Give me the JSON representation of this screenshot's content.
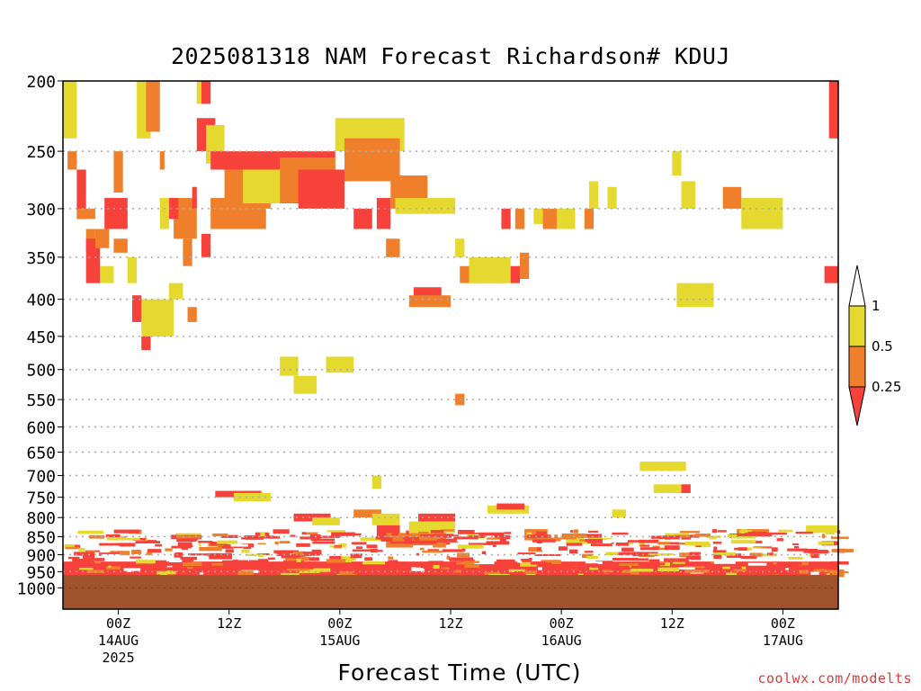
{
  "title": "2025081318 NAM Forecast Richardson# KDUJ",
  "xlabel": "Forecast Time (UTC)",
  "credit": "coolwx.com/modelts",
  "colors": {
    "yellow": "#e5d82e",
    "orange": "#ef7f2b",
    "red": "#f6423b",
    "ground": "#a0522d",
    "grid": "#aaaaaa"
  },
  "chart_data": {
    "type": "heatmap",
    "title": "2025081318 NAM Forecast Richardson# KDUJ",
    "xlabel": "Forecast Time (UTC)",
    "ylabel": "",
    "y_scale": "pressure (log), inverted",
    "ylim_hPa": [
      1000,
      200
    ],
    "xlim_forecast_hours": [
      0,
      84
    ],
    "init_time": "2025081318",
    "y_ticks": [
      200,
      250,
      300,
      350,
      400,
      450,
      500,
      550,
      600,
      650,
      700,
      750,
      800,
      850,
      900,
      950,
      1000
    ],
    "x_ticks": [
      {
        "label": "00Z",
        "sub": "14AUG",
        "sub2": "2025"
      },
      {
        "label": "12Z",
        "sub": "",
        "sub2": ""
      },
      {
        "label": "00Z",
        "sub": "15AUG",
        "sub2": ""
      },
      {
        "label": "12Z",
        "sub": "",
        "sub2": ""
      },
      {
        "label": "00Z",
        "sub": "16AUG",
        "sub2": ""
      },
      {
        "label": "12Z",
        "sub": "",
        "sub2": ""
      },
      {
        "label": "00Z",
        "sub": "17AUG",
        "sub2": ""
      }
    ],
    "grid": "dotted horizontal at each pressure tick",
    "legend": {
      "position": "right",
      "type": "colorbar",
      "labels": [
        "1",
        "0.5",
        "0.25"
      ],
      "bins": [
        {
          "range": "0.5 - 1",
          "color": "yellow"
        },
        {
          "range": "0.25 - 0.5",
          "color": "orange"
        },
        {
          "range": "< 0.25",
          "color": "red"
        }
      ]
    },
    "cells": [
      [
        "Y",
        0.0,
        1.5,
        200,
        240
      ],
      [
        "O",
        0.5,
        1.5,
        250,
        265
      ],
      [
        "R",
        1.5,
        2.5,
        265,
        310
      ],
      [
        "O",
        1.5,
        3.5,
        300,
        310
      ],
      [
        "O",
        2.5,
        3.5,
        320,
        345
      ],
      [
        "R",
        2.5,
        4.0,
        330,
        380
      ],
      [
        "O",
        3.5,
        5.0,
        320,
        340
      ],
      [
        "Y",
        4.0,
        5.5,
        360,
        380
      ],
      [
        "R",
        4.5,
        7.0,
        290,
        320
      ],
      [
        "O",
        5.5,
        6.5,
        250,
        285
      ],
      [
        "O",
        5.5,
        7.0,
        330,
        345
      ],
      [
        "Y",
        7.0,
        8.0,
        350,
        380
      ],
      [
        "R",
        7.5,
        8.5,
        395,
        430
      ],
      [
        "Y",
        8.0,
        9.5,
        200,
        240
      ],
      [
        "O",
        9.0,
        10.5,
        200,
        235
      ],
      [
        "R",
        8.5,
        9.5,
        450,
        470
      ],
      [
        "Y",
        8.5,
        12.0,
        400,
        450
      ],
      [
        "O",
        10.5,
        11.0,
        250,
        265
      ],
      [
        "Y",
        10.5,
        11.5,
        290,
        320
      ],
      [
        "Y",
        11.5,
        13.0,
        380,
        400
      ],
      [
        "O",
        12.0,
        14.5,
        290,
        330
      ],
      [
        "R",
        11.5,
        12.5,
        290,
        310
      ],
      [
        "O",
        13.0,
        14.0,
        330,
        360
      ],
      [
        "O",
        13.5,
        14.5,
        410,
        430
      ],
      [
        "R",
        14.0,
        14.5,
        280,
        300
      ],
      [
        "Y",
        14.5,
        15.5,
        200,
        215
      ],
      [
        "R",
        15.0,
        16.0,
        200,
        215
      ],
      [
        "R",
        14.5,
        16.5,
        225,
        250
      ],
      [
        "R",
        15.0,
        16.0,
        325,
        350
      ],
      [
        "Y",
        15.5,
        17.5,
        230,
        260
      ],
      [
        "R",
        16.0,
        29.5,
        250,
        265
      ],
      [
        "O",
        17.5,
        22.5,
        265,
        300
      ],
      [
        "O",
        16.0,
        22.0,
        290,
        320
      ],
      [
        "Y",
        19.5,
        23.5,
        265,
        295
      ],
      [
        "O",
        23.5,
        29.5,
        255,
        295
      ],
      [
        "R",
        25.5,
        30.5,
        265,
        300
      ],
      [
        "Y",
        29.5,
        37.0,
        225,
        250
      ],
      [
        "O",
        30.5,
        36.5,
        240,
        275
      ],
      [
        "R",
        31.5,
        33.5,
        300,
        320
      ],
      [
        "R",
        34.0,
        35.5,
        290,
        320
      ],
      [
        "O",
        35.5,
        39.5,
        270,
        300
      ],
      [
        "Y",
        36.0,
        42.5,
        290,
        305
      ],
      [
        "O",
        35.0,
        36.5,
        330,
        350
      ],
      [
        "R",
        38.0,
        41.0,
        385,
        405
      ],
      [
        "O",
        37.5,
        42.0,
        395,
        410
      ],
      [
        "Y",
        42.5,
        43.5,
        330,
        350
      ],
      [
        "O",
        43.0,
        48.0,
        360,
        380
      ],
      [
        "Y",
        44.0,
        48.5,
        350,
        380
      ],
      [
        "R",
        47.5,
        48.5,
        300,
        320
      ],
      [
        "R",
        48.5,
        49.5,
        360,
        380
      ],
      [
        "O",
        49.5,
        50.5,
        345,
        375
      ],
      [
        "O",
        49.0,
        50.0,
        300,
        320
      ],
      [
        "Y",
        51.0,
        52.5,
        300,
        315
      ],
      [
        "O",
        52.0,
        53.5,
        300,
        320
      ],
      [
        "Y",
        53.5,
        55.5,
        300,
        320
      ],
      [
        "O",
        56.5,
        57.5,
        300,
        320
      ],
      [
        "Y",
        57.0,
        58.0,
        275,
        300
      ],
      [
        "Y",
        59.0,
        60.0,
        280,
        300
      ],
      [
        "Y",
        66.0,
        67.0,
        250,
        270
      ],
      [
        "Y",
        67.0,
        68.5,
        275,
        300
      ],
      [
        "O",
        71.5,
        73.5,
        280,
        300
      ],
      [
        "Y",
        73.5,
        78.0,
        290,
        320
      ],
      [
        "R",
        83.0,
        84.0,
        200,
        240
      ],
      [
        "R",
        82.5,
        84.0,
        360,
        380
      ],
      [
        "Y",
        66.5,
        70.5,
        380,
        410
      ],
      [
        "Y",
        23.5,
        25.5,
        480,
        510
      ],
      [
        "Y",
        25.0,
        27.5,
        510,
        540
      ],
      [
        "Y",
        28.5,
        31.5,
        480,
        505
      ],
      [
        "O",
        42.5,
        43.5,
        540,
        560
      ],
      [
        "Y",
        33.5,
        34.5,
        700,
        730
      ],
      [
        "Y",
        62.5,
        67.5,
        670,
        690
      ],
      [
        "Y",
        64.0,
        68.0,
        720,
        740
      ],
      [
        "R",
        67.0,
        68.0,
        720,
        740
      ],
      [
        "R",
        16.5,
        21.5,
        735,
        750
      ],
      [
        "Y",
        18.5,
        22.5,
        740,
        760
      ],
      [
        "R",
        25.0,
        29.0,
        790,
        810
      ],
      [
        "Y",
        27.0,
        30.0,
        800,
        820
      ],
      [
        "O",
        31.5,
        34.5,
        780,
        800
      ],
      [
        "Y",
        33.5,
        36.5,
        790,
        820
      ],
      [
        "R",
        34.0,
        36.5,
        820,
        860
      ],
      [
        "O",
        35.0,
        41.5,
        840,
        880
      ],
      [
        "R",
        37.0,
        40.5,
        850,
        870
      ],
      [
        "Y",
        37.5,
        42.5,
        810,
        840
      ],
      [
        "R",
        38.5,
        42.5,
        790,
        810
      ],
      [
        "Y",
        46.0,
        50.5,
        770,
        790
      ],
      [
        "R",
        47.0,
        50.0,
        765,
        780
      ],
      [
        "O",
        50.0,
        52.5,
        830,
        860
      ],
      [
        "Y",
        54.5,
        57.5,
        845,
        870
      ],
      [
        "Y",
        59.5,
        61.0,
        780,
        800
      ],
      [
        "O",
        73.0,
        76.5,
        830,
        850
      ],
      [
        "Y",
        80.5,
        84.0,
        820,
        840
      ]
    ],
    "surface_pressure_hPa": 960,
    "pbl_unstable_layer_hPa": [
      880,
      960
    ]
  }
}
